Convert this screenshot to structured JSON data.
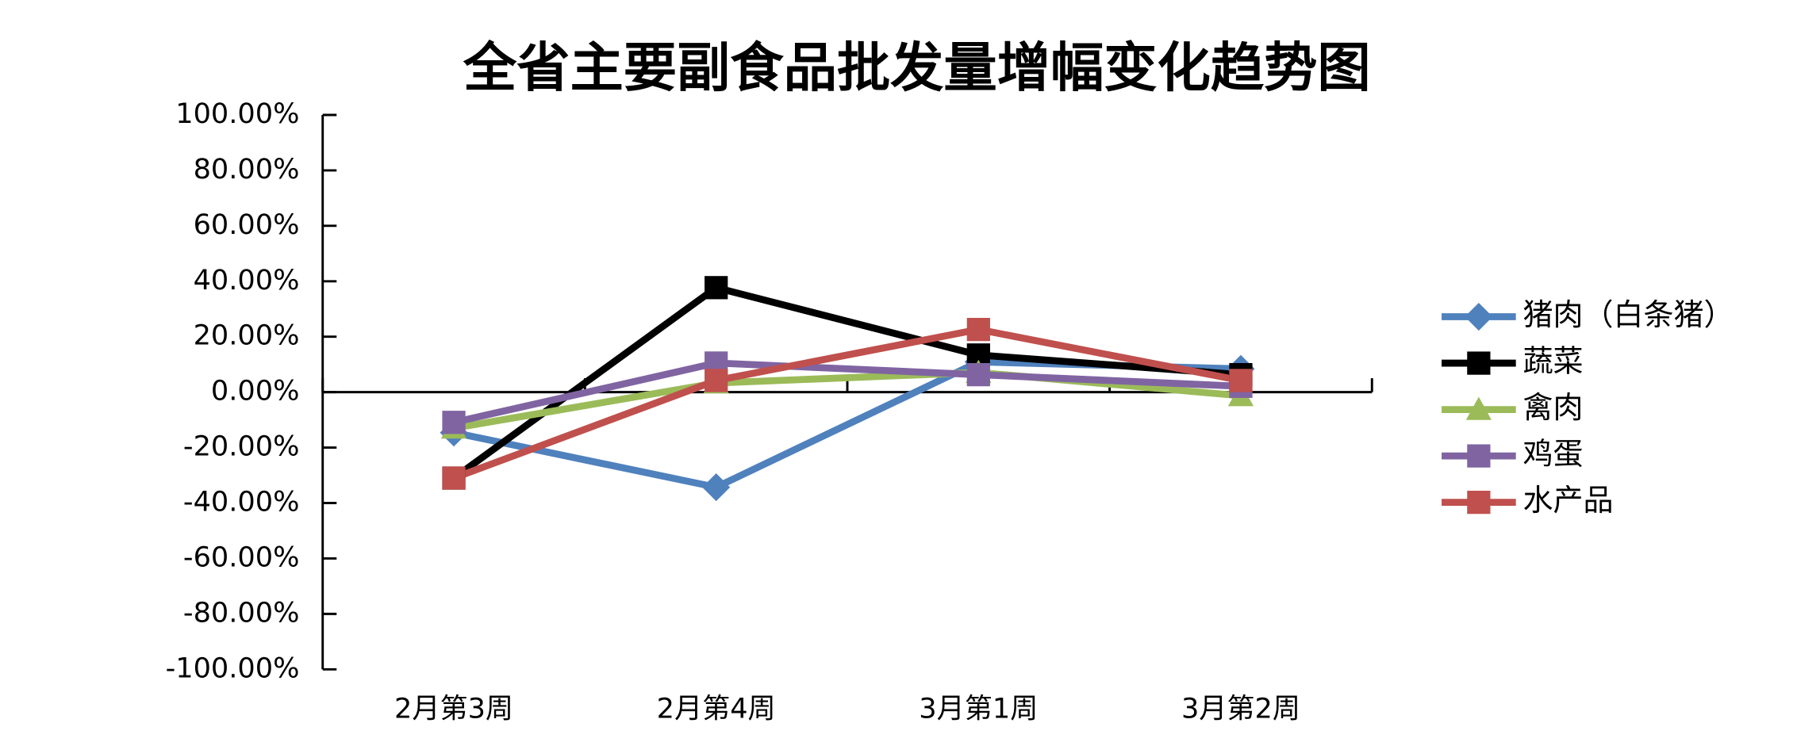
{
  "chart_data": {
    "type": "line",
    "title": "全省主要副食品批发量增幅变化趋势图",
    "categories": [
      "2月第3周",
      "2月第4周",
      "3月第1周",
      "3月第2周"
    ],
    "series": [
      {
        "name": "猪肉（白条猪）",
        "color": "#4f81bd",
        "marker": "diamond",
        "values": [
          -14.6,
          -34.3,
          10.9,
          8.4
        ]
      },
      {
        "name": "蔬菜",
        "color": "#000000",
        "marker": "square",
        "values": [
          -31,
          37.7,
          13.4,
          6.3
        ]
      },
      {
        "name": "禽肉",
        "color": "#9bbb59",
        "marker": "triangle",
        "values": [
          -13,
          3.3,
          7.1,
          -1.3
        ]
      },
      {
        "name": "鸡蛋",
        "color": "#8064a2",
        "marker": "square",
        "values": [
          -10.9,
          10.5,
          6.3,
          2.1
        ]
      },
      {
        "name": "水产品",
        "color": "#c0504d",
        "marker": "square",
        "values": [
          -31,
          4.2,
          22.6,
          4.2
        ]
      }
    ],
    "ylim": [
      -100,
      100
    ],
    "yticks": [
      {
        "value": -100,
        "label": "-100.00%"
      },
      {
        "value": -80,
        "label": "-80.00%"
      },
      {
        "value": -60,
        "label": "-60.00%"
      },
      {
        "value": -40,
        "label": "-40.00%"
      },
      {
        "value": -20,
        "label": "-20.00%"
      },
      {
        "value": 0,
        "label": "0.00%"
      },
      {
        "value": 20,
        "label": "20.00%"
      },
      {
        "value": 40,
        "label": "40.00%"
      },
      {
        "value": 60,
        "label": "60.00%"
      },
      {
        "value": 80,
        "label": "80.00%"
      },
      {
        "value": 100,
        "label": "100.00%"
      }
    ],
    "legend": "right"
  }
}
